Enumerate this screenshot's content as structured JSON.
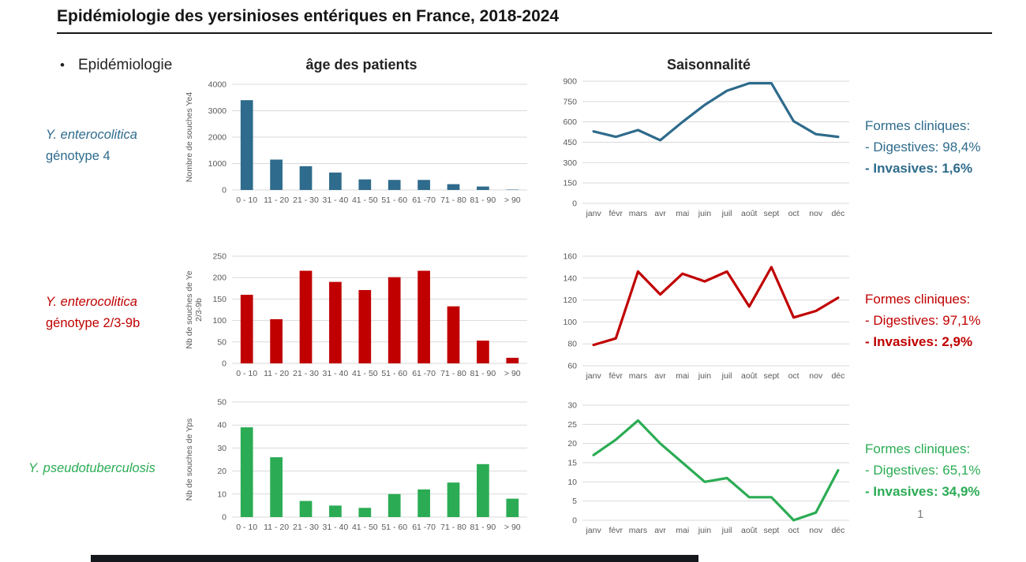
{
  "slide": {
    "title": "Epidémiologie des yersinioses entériques en France, 2018-2024",
    "bullet": "Epidémiologie",
    "page_number": "1"
  },
  "colors": {
    "ye4_blue": "#2e6b8c",
    "ye239b_red": "#c00000",
    "yps_green": "#2bac54",
    "grid_gray": "#d9d9d9",
    "tick_gray": "#595959"
  },
  "rows": [
    {
      "label_line1": "Y. enterocolitica",
      "label_line2": "génotype 4",
      "color": "#2e6b8c",
      "clinical_title": "Formes cliniques:",
      "digestives": "- Digestives: 98,4%",
      "invasives": "- Invasives: 1,6%"
    },
    {
      "label_line1": "Y. enterocolitica",
      "label_line2": "génotype 2/3-9b",
      "color": "#c00000",
      "clinical_title": "Formes cliniques:",
      "digestives": "- Digestives: 97,1%",
      "invasives": "- Invasives: 2,9%"
    },
    {
      "label_line1": "Y. pseudotuberculosis",
      "label_line2": "",
      "color": "#2bac54",
      "clinical_title": "Formes cliniques:",
      "digestives": "- Digestives: 65,1%",
      "invasives": "- Invasives: 34,9%"
    }
  ],
  "chart_data": [
    {
      "type": "bar",
      "title": "âge des patients",
      "ylabel": "Nombre de souches Ye4",
      "categories": [
        "0 - 10",
        "11 - 20",
        "21 - 30",
        "31 - 40",
        "41 - 50",
        "51 - 60",
        "61 -70",
        "71 - 80",
        "81 - 90",
        "> 90"
      ],
      "values": [
        3400,
        1150,
        900,
        660,
        400,
        380,
        380,
        220,
        130,
        15
      ],
      "ylim": [
        0,
        4000
      ],
      "yticks": [
        0,
        1000,
        2000,
        3000,
        4000
      ],
      "color": "#2e6b8c",
      "grid": true,
      "legend": "none"
    },
    {
      "type": "line",
      "title": "Saisonnalité",
      "x": [
        "janv",
        "févr",
        "mars",
        "avr",
        "mai",
        "juin",
        "juil",
        "août",
        "sept",
        "oct",
        "nov",
        "déc"
      ],
      "values": [
        530,
        490,
        540,
        465,
        600,
        725,
        830,
        885,
        885,
        605,
        510,
        490
      ],
      "ylim": [
        0,
        900
      ],
      "yticks": [
        0,
        150,
        300,
        450,
        600,
        750,
        900
      ],
      "color": "#2e6b8c",
      "grid": true,
      "legend": "none"
    },
    {
      "type": "bar",
      "title": "",
      "ylabel": [
        "Nb de souches de Ye",
        "2/3-9b"
      ],
      "categories": [
        "0 - 10",
        "11 - 20",
        "21 - 30",
        "31 - 40",
        "41 - 50",
        "51 - 60",
        "61 -70",
        "71 - 80",
        "81 - 90",
        "> 90"
      ],
      "values": [
        160,
        103,
        216,
        190,
        171,
        201,
        216,
        133,
        53,
        13
      ],
      "ylim": [
        0,
        250
      ],
      "yticks": [
        0,
        50,
        100,
        150,
        200,
        250
      ],
      "color": "#c00000",
      "grid": true,
      "legend": "none"
    },
    {
      "type": "line",
      "title": "",
      "x": [
        "janv",
        "févr",
        "mars",
        "avr",
        "mai",
        "juin",
        "juil",
        "août",
        "sept",
        "oct",
        "nov",
        "déc"
      ],
      "values": [
        79,
        85,
        146,
        125,
        144,
        137,
        146,
        114,
        150,
        104,
        110,
        122
      ],
      "ylim": [
        60,
        160
      ],
      "yticks": [
        60,
        80,
        100,
        120,
        140,
        160
      ],
      "color": "#c00000",
      "grid": true,
      "legend": "none"
    },
    {
      "type": "bar",
      "title": "",
      "ylabel": "Nb de souches de Yps",
      "categories": [
        "0 - 10",
        "11 - 20",
        "21 - 30",
        "31 - 40",
        "41 - 50",
        "51 - 60",
        "61 -70",
        "71 - 80",
        "81 - 90",
        "> 90"
      ],
      "values": [
        39,
        26,
        7,
        5,
        4,
        10,
        12,
        15,
        23,
        8
      ],
      "ylim": [
        0,
        50
      ],
      "yticks": [
        0,
        10,
        20,
        30,
        40,
        50
      ],
      "color": "#2bac54",
      "grid": true,
      "legend": "none"
    },
    {
      "type": "line",
      "title": "",
      "x": [
        "janv",
        "févr",
        "mars",
        "avr",
        "mai",
        "juin",
        "juil",
        "août",
        "sept",
        "oct",
        "nov",
        "déc"
      ],
      "values": [
        17,
        21,
        26,
        20,
        15,
        10,
        11,
        6,
        6,
        0,
        2,
        13
      ],
      "ylim": [
        0,
        30
      ],
      "yticks": [
        0,
        5,
        10,
        15,
        20,
        25,
        30
      ],
      "color": "#2bac54",
      "grid": true,
      "legend": "none"
    }
  ]
}
